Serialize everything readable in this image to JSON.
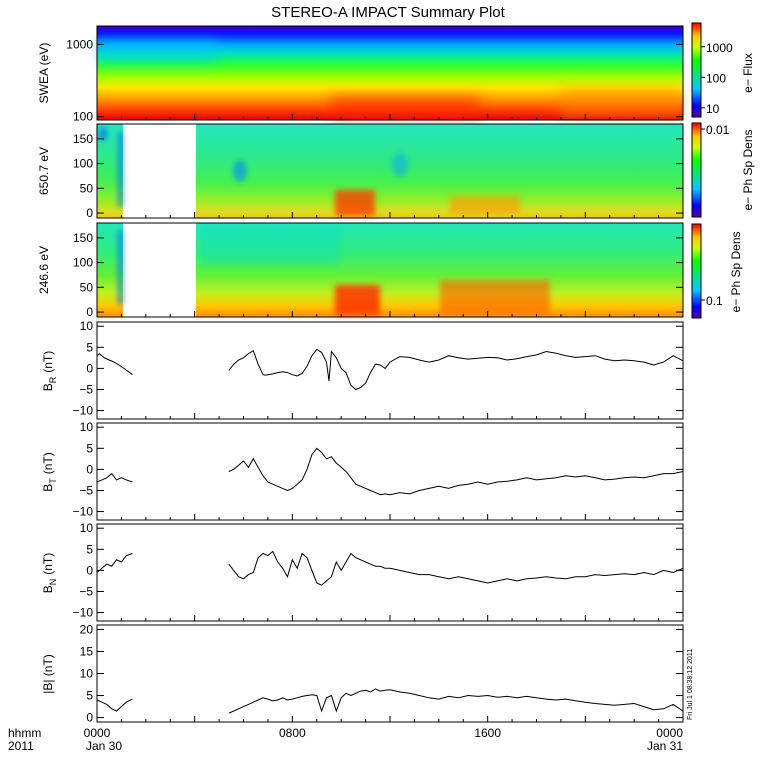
{
  "chart_data": [
    {
      "type": "heatmap",
      "panel": "swea",
      "title": "STEREO-A IMPACT Summary Plot",
      "ylabel": "SWEA (eV)",
      "y_scale": "log",
      "ylim": [
        90,
        1800
      ],
      "yticks": [
        "1000",
        "100"
      ],
      "ytick_values": [
        1000,
        100
      ],
      "colorbar": {
        "label": "e− Flux",
        "scale": "log",
        "ticks": [
          "1000",
          "100",
          "10"
        ],
        "tick_values": [
          1000,
          100,
          10
        ],
        "range": [
          5,
          6000
        ]
      }
    },
    {
      "type": "heatmap",
      "panel": "pad_650",
      "ylabel": "650.7 eV",
      "ylim": [
        -10,
        180
      ],
      "yticks": [
        "150",
        "100",
        "50",
        "0"
      ],
      "ytick_values": [
        150,
        100,
        50,
        0
      ],
      "data_gap": [
        "0140",
        "0530"
      ],
      "colorbar": {
        "label": "e− Ph Sp Dens",
        "ticks": [
          "0.01"
        ],
        "tick_values": [
          0.01
        ]
      }
    },
    {
      "type": "heatmap",
      "panel": "pad_246",
      "ylabel": "246.6 eV",
      "ylim": [
        -10,
        180
      ],
      "yticks": [
        "150",
        "100",
        "50",
        "0"
      ],
      "ytick_values": [
        150,
        100,
        50,
        0
      ],
      "data_gap": [
        "0140",
        "0530"
      ],
      "colorbar": {
        "label": "e− Ph Sp Dens",
        "ticks": [
          "0.1"
        ],
        "tick_values": [
          0.1
        ]
      }
    },
    {
      "type": "line",
      "panel": "br",
      "ylabel": "B",
      "ylabel_sub": "R",
      "ylabel_unit": "(nT)",
      "ylim": [
        -12,
        11
      ],
      "yticks": [
        "10",
        "5",
        "0",
        "−5",
        "−10"
      ],
      "ytick_values": [
        10,
        5,
        0,
        -5,
        -10
      ],
      "segments": [
        {
          "x": [
            0.0,
            0.1,
            0.3,
            0.5,
            0.7,
            0.9,
            1.1,
            1.3,
            1.45
          ],
          "y": [
            3.0,
            3.5,
            2.5,
            2.0,
            1.5,
            0.8,
            0.0,
            -0.8,
            -1.5
          ]
        },
        {
          "x": [
            5.4,
            5.6,
            5.8,
            6.0,
            6.2,
            6.4,
            6.6,
            6.8,
            6.9,
            7.0,
            7.2,
            7.4,
            7.6,
            7.8,
            8.0,
            8.2,
            8.4,
            8.6,
            8.8,
            9.0,
            9.2,
            9.4,
            9.5,
            9.6,
            9.8,
            10.0,
            10.2,
            10.4,
            10.6,
            10.8,
            11.0,
            11.2,
            11.4,
            11.6,
            11.8,
            12.0,
            12.4,
            12.8,
            13.2,
            13.6,
            14.0,
            14.4,
            14.8,
            15.2,
            15.6,
            16.0,
            16.4,
            16.8,
            17.2,
            17.6,
            18.0,
            18.4,
            18.8,
            19.2,
            19.6,
            20.0,
            20.4,
            20.8,
            21.2,
            21.6,
            22.0,
            22.4,
            22.8,
            23.2,
            23.6,
            24.0
          ],
          "y": [
            -0.5,
            1.0,
            2.0,
            2.5,
            3.5,
            4.2,
            1.0,
            -1.5,
            -1.6,
            -1.5,
            -1.3,
            -1.0,
            -0.8,
            -1.0,
            -1.5,
            -1.8,
            -1.2,
            0.5,
            3.0,
            4.5,
            3.8,
            1.5,
            -3.0,
            4.0,
            2.5,
            0.0,
            -1.0,
            -4.0,
            -5.0,
            -4.5,
            -3.5,
            -1.0,
            1.0,
            0.8,
            0.0,
            1.5,
            2.8,
            2.6,
            2.0,
            1.5,
            2.0,
            3.0,
            2.5,
            2.2,
            2.4,
            2.6,
            2.5,
            2.0,
            2.3,
            2.8,
            3.2,
            4.0,
            3.6,
            3.0,
            2.6,
            2.8,
            3.0,
            2.2,
            1.8,
            2.0,
            1.8,
            1.5,
            0.8,
            1.5,
            3.0,
            1.8
          ]
        }
      ]
    },
    {
      "type": "line",
      "panel": "bt",
      "ylabel": "B",
      "ylabel_sub": "T",
      "ylabel_unit": "(nT)",
      "ylim": [
        -12,
        11
      ],
      "yticks": [
        "10",
        "5",
        "0",
        "−5",
        "−10"
      ],
      "ytick_values": [
        10,
        5,
        0,
        -5,
        -10
      ],
      "segments": [
        {
          "x": [
            0.0,
            0.2,
            0.4,
            0.6,
            0.8,
            1.0,
            1.2,
            1.45
          ],
          "y": [
            -3.0,
            -2.5,
            -2.0,
            -1.0,
            -2.5,
            -2.0,
            -2.5,
            -3.0
          ]
        },
        {
          "x": [
            5.4,
            5.6,
            5.8,
            6.0,
            6.2,
            6.4,
            6.6,
            6.8,
            7.0,
            7.2,
            7.4,
            7.6,
            7.8,
            8.0,
            8.2,
            8.4,
            8.6,
            8.8,
            9.0,
            9.2,
            9.4,
            9.6,
            9.8,
            10.0,
            10.2,
            10.4,
            10.6,
            10.8,
            11.0,
            11.2,
            11.4,
            11.6,
            11.8,
            12.0,
            12.4,
            12.8,
            13.2,
            13.6,
            14.0,
            14.4,
            14.8,
            15.2,
            15.6,
            16.0,
            16.4,
            16.8,
            17.2,
            17.6,
            18.0,
            18.4,
            18.8,
            19.2,
            19.6,
            20.0,
            20.4,
            20.8,
            21.2,
            21.6,
            22.0,
            22.4,
            22.8,
            23.2,
            23.6,
            24.0
          ],
          "y": [
            -0.5,
            0.0,
            1.0,
            2.0,
            0.5,
            2.5,
            0.5,
            -1.5,
            -3.0,
            -3.5,
            -4.0,
            -4.5,
            -5.0,
            -4.5,
            -3.5,
            -2.5,
            0.0,
            3.5,
            5.0,
            4.0,
            2.5,
            3.0,
            1.5,
            0.5,
            -0.5,
            -2.0,
            -3.5,
            -4.0,
            -4.5,
            -5.0,
            -5.5,
            -6.0,
            -5.8,
            -6.0,
            -5.5,
            -5.8,
            -5.0,
            -4.5,
            -4.0,
            -4.5,
            -3.8,
            -3.5,
            -3.0,
            -3.5,
            -3.0,
            -2.8,
            -2.5,
            -2.0,
            -2.5,
            -2.2,
            -2.0,
            -1.5,
            -1.8,
            -1.5,
            -2.0,
            -2.5,
            -2.3,
            -2.0,
            -1.8,
            -2.0,
            -1.5,
            -1.0,
            -1.0,
            -0.5
          ]
        }
      ]
    },
    {
      "type": "line",
      "panel": "bn",
      "ylabel": "B",
      "ylabel_sub": "N",
      "ylabel_unit": "(nT)",
      "ylim": [
        -12,
        11
      ],
      "yticks": [
        "10",
        "5",
        "0",
        "−5",
        "−10"
      ],
      "ytick_values": [
        10,
        5,
        0,
        -5,
        -10
      ],
      "segments": [
        {
          "x": [
            0.0,
            0.2,
            0.4,
            0.6,
            0.8,
            1.0,
            1.2,
            1.45
          ],
          "y": [
            -0.5,
            0.5,
            1.5,
            1.0,
            2.5,
            2.0,
            3.5,
            4.0
          ]
        },
        {
          "x": [
            5.4,
            5.6,
            5.8,
            6.0,
            6.2,
            6.4,
            6.6,
            6.8,
            7.0,
            7.2,
            7.4,
            7.6,
            7.8,
            8.0,
            8.2,
            8.4,
            8.6,
            8.8,
            9.0,
            9.2,
            9.4,
            9.6,
            9.8,
            10.0,
            10.2,
            10.4,
            10.6,
            10.8,
            11.0,
            11.2,
            11.4,
            11.6,
            11.8,
            12.0,
            12.4,
            12.8,
            13.2,
            13.6,
            14.0,
            14.4,
            14.8,
            15.2,
            15.6,
            16.0,
            16.4,
            16.8,
            17.2,
            17.6,
            18.0,
            18.4,
            18.8,
            19.2,
            19.6,
            20.0,
            20.4,
            20.8,
            21.2,
            21.6,
            22.0,
            22.4,
            22.8,
            23.2,
            23.6,
            24.0
          ],
          "y": [
            1.5,
            0.0,
            -1.5,
            -2.0,
            -1.0,
            -0.5,
            3.0,
            4.0,
            3.5,
            4.5,
            2.0,
            0.5,
            -1.5,
            2.5,
            0.5,
            4.0,
            3.0,
            0.0,
            -3.0,
            -3.5,
            -2.5,
            -1.5,
            2.0,
            0.0,
            2.0,
            4.0,
            3.0,
            2.5,
            2.0,
            1.5,
            1.0,
            1.0,
            0.5,
            0.5,
            0.0,
            -0.5,
            -1.0,
            -1.0,
            -1.5,
            -2.0,
            -1.5,
            -2.0,
            -2.5,
            -3.0,
            -2.5,
            -2.0,
            -2.5,
            -2.0,
            -1.8,
            -1.5,
            -1.8,
            -2.0,
            -1.5,
            -1.5,
            -1.0,
            -1.2,
            -1.0,
            -0.8,
            -1.0,
            -0.5,
            -1.0,
            0.0,
            -0.5,
            0.5
          ]
        }
      ]
    },
    {
      "type": "line",
      "panel": "bmag",
      "ylabel": "|B| (nT)",
      "ylim": [
        -1,
        21
      ],
      "yticks": [
        "20",
        "15",
        "10",
        "5",
        "0"
      ],
      "ytick_values": [
        20,
        15,
        10,
        5,
        0
      ],
      "segments": [
        {
          "x": [
            0.0,
            0.2,
            0.4,
            0.6,
            0.8,
            1.0,
            1.2,
            1.45
          ],
          "y": [
            4.0,
            3.5,
            3.0,
            2.0,
            1.5,
            2.5,
            3.5,
            4.2
          ]
        },
        {
          "x": [
            5.4,
            5.6,
            5.8,
            6.0,
            6.2,
            6.4,
            6.6,
            6.8,
            7.0,
            7.2,
            7.4,
            7.6,
            7.8,
            8.0,
            8.2,
            8.4,
            8.6,
            8.8,
            9.0,
            9.2,
            9.4,
            9.6,
            9.8,
            10.0,
            10.2,
            10.4,
            10.6,
            10.8,
            11.0,
            11.2,
            11.4,
            11.6,
            11.8,
            12.0,
            12.4,
            12.8,
            13.2,
            13.6,
            14.0,
            14.4,
            14.8,
            15.2,
            15.6,
            16.0,
            16.4,
            16.8,
            17.2,
            17.6,
            18.0,
            18.4,
            18.8,
            19.2,
            19.6,
            20.0,
            20.4,
            20.8,
            21.2,
            21.6,
            22.0,
            22.4,
            22.8,
            23.2,
            23.6,
            24.0
          ],
          "y": [
            1.0,
            1.5,
            2.0,
            2.5,
            3.0,
            3.5,
            4.0,
            4.5,
            4.2,
            3.8,
            4.0,
            4.5,
            4.0,
            4.2,
            4.5,
            4.8,
            5.0,
            5.2,
            5.0,
            1.5,
            4.5,
            5.0,
            1.5,
            4.5,
            5.5,
            5.0,
            5.5,
            6.0,
            6.2,
            5.8,
            6.5,
            6.0,
            6.2,
            6.3,
            5.8,
            5.5,
            5.0,
            4.5,
            4.2,
            4.8,
            4.5,
            5.0,
            4.8,
            5.0,
            4.6,
            4.8,
            4.5,
            4.8,
            4.5,
            4.2,
            4.0,
            4.2,
            3.8,
            3.5,
            3.2,
            3.0,
            2.8,
            3.0,
            3.2,
            2.5,
            1.8,
            2.0,
            3.0,
            1.5
          ]
        }
      ]
    }
  ],
  "x_axis": {
    "title_line1": "hhmm",
    "title_line2": "2011",
    "tick_hours": [
      0,
      8,
      16,
      24
    ],
    "tick_labels": [
      "0000",
      "0800",
      "1600",
      "0000"
    ],
    "date_labels": [
      "Jan 30",
      "Jan 31"
    ]
  },
  "stamp": "Fri Jul 1 08:38:12 2011"
}
